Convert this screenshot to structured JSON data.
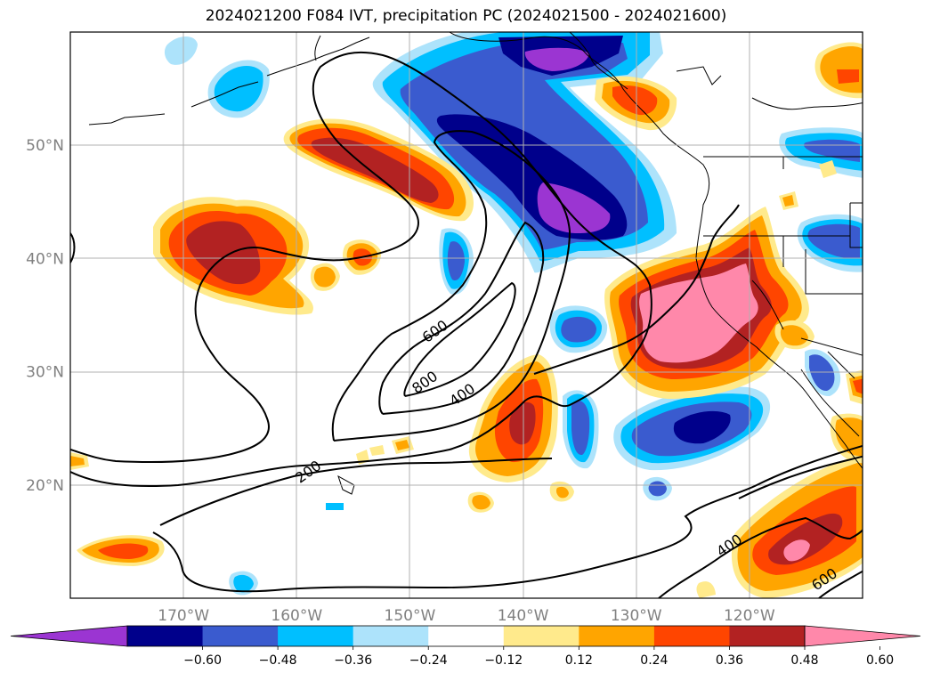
{
  "title": "2024021200 F084 IVT, precipitation PC (2024021500 - 2024021600)",
  "map": {
    "lon_range": [
      -180,
      -110
    ],
    "lat_range": [
      10,
      60
    ],
    "lat_ticks": [
      {
        "value": 50,
        "label": "50°N"
      },
      {
        "value": 40,
        "label": "40°N"
      },
      {
        "value": 30,
        "label": "30°N"
      },
      {
        "value": 20,
        "label": "20°N"
      }
    ],
    "lon_ticks": [
      {
        "value": -170,
        "label": "170°W"
      },
      {
        "value": -160,
        "label": "160°W"
      },
      {
        "value": -150,
        "label": "150°W"
      },
      {
        "value": -140,
        "label": "140°W"
      },
      {
        "value": -130,
        "label": "130°W"
      },
      {
        "value": -120,
        "label": "120°W"
      }
    ],
    "grid": true,
    "contour_labels": [
      {
        "text": "600",
        "lon": -147.8,
        "lat": 33.6
      },
      {
        "text": "800",
        "lon": -148.7,
        "lat": 29.1
      },
      {
        "text": "400",
        "lon": -145.4,
        "lat": 28.0
      },
      {
        "text": "200",
        "lon": -159.0,
        "lat": 21.2
      },
      {
        "text": "400",
        "lon": -121.8,
        "lat": 14.7
      },
      {
        "text": "600",
        "lon": -113.4,
        "lat": 11.7
      }
    ]
  },
  "colorbar": {
    "colors": [
      "#9b35d2",
      "#00008b",
      "#3a5bcf",
      "#00bfff",
      "#ade3fb",
      "#ffffff",
      "#ffea8c",
      "#ffa500",
      "#ff4500",
      "#b22222",
      "#ff88aa"
    ],
    "tick_labels": [
      "−0.60",
      "−0.48",
      "−0.36",
      "−0.24",
      "−0.12",
      "0.12",
      "0.24",
      "0.36",
      "0.48",
      "0.60"
    ]
  }
}
